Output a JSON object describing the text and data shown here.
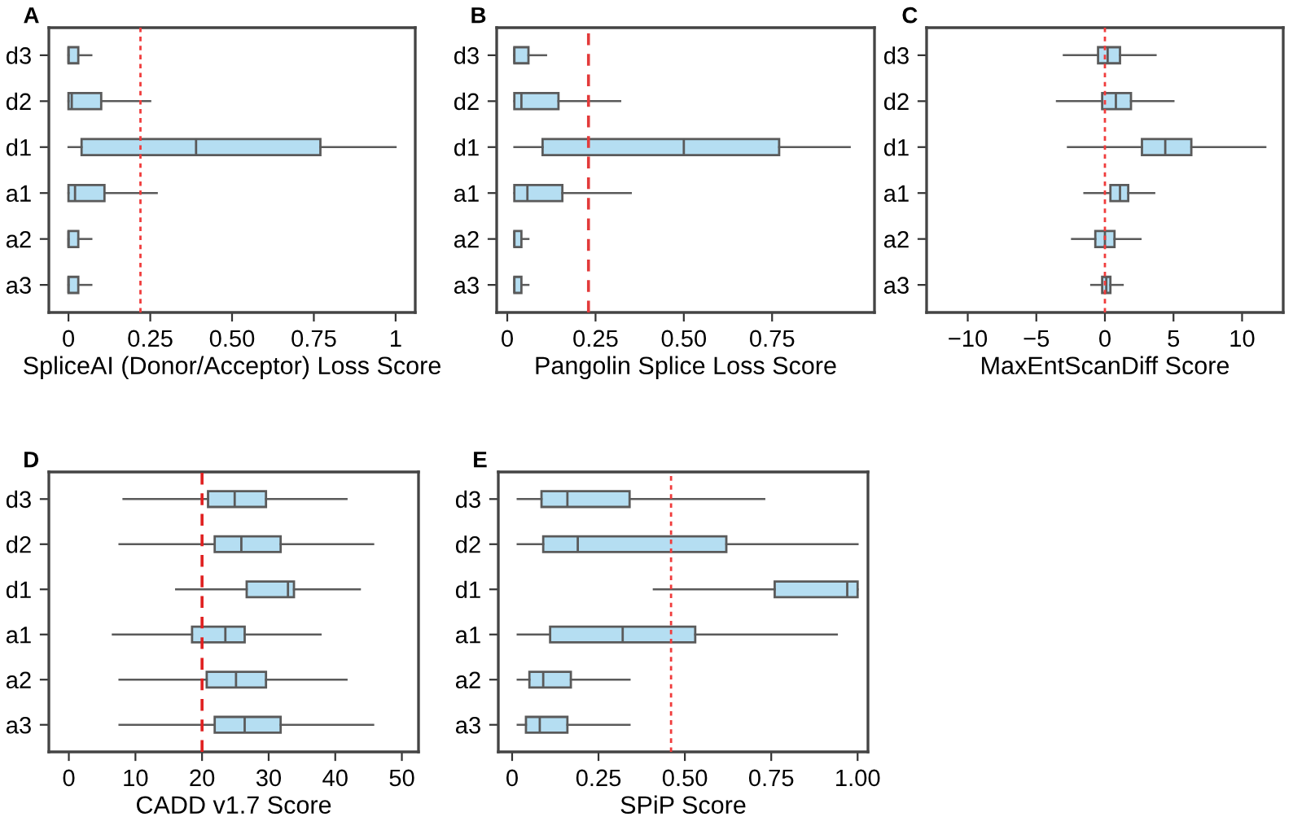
{
  "chart_data": [
    {
      "type": "box",
      "orientation": "horizontal",
      "title": "A",
      "xlabel": "SpliceAI (Donor/Acceptor) Loss Score",
      "categories": [
        "d3",
        "d2",
        "d1",
        "a1",
        "a2",
        "a3"
      ],
      "color": "#b5def2",
      "xlim": [
        -0.06,
        1.06
      ],
      "xticks": [
        0,
        0.25,
        {
          "value": 0.5,
          "label": "0.50"
        },
        0.75,
        1
      ],
      "grid": false,
      "boxes": [
        {
          "low": 0,
          "q1": 0,
          "median": 0,
          "q3": 0.03,
          "high": 0.07
        },
        {
          "low": 0,
          "q1": 0,
          "median": 0.01,
          "q3": 0.1,
          "high": 0.25
        },
        {
          "low": 0,
          "q1": 0.04,
          "median": 0.39,
          "q3": 0.77,
          "high": 1.0
        },
        {
          "low": 0,
          "q1": 0,
          "median": 0.02,
          "q3": 0.11,
          "high": 0.27
        },
        {
          "low": 0,
          "q1": 0,
          "median": 0,
          "q3": 0.03,
          "high": 0.07
        },
        {
          "low": 0,
          "q1": 0,
          "median": 0,
          "q3": 0.03,
          "high": 0.07
        }
      ],
      "ref_lines": [
        {
          "axis": "x",
          "value": 0.22,
          "color": "#f03c3c",
          "line_style": "dotted"
        }
      ]
    },
    {
      "type": "box",
      "orientation": "horizontal",
      "title": "B",
      "xlabel": "Pangolin Splice Loss Score",
      "categories": [
        "d3",
        "d2",
        "d1",
        "a1",
        "a2",
        "a3"
      ],
      "color": "#b5def2",
      "xlim": [
        -0.03,
        1.04
      ],
      "xticks": [
        0,
        0.25,
        {
          "value": 0.5,
          "label": "0.50"
        },
        0.75
      ],
      "grid": false,
      "boxes": [
        {
          "low": 0.02,
          "q1": 0.02,
          "median": 0.02,
          "q3": 0.06,
          "high": 0.11
        },
        {
          "low": 0.02,
          "q1": 0.02,
          "median": 0.04,
          "q3": 0.145,
          "high": 0.32
        },
        {
          "low": 0.02,
          "q1": 0.1,
          "median": 0.5,
          "q3": 0.77,
          "high": 0.97
        },
        {
          "low": 0.02,
          "q1": 0.02,
          "median": 0.057,
          "q3": 0.156,
          "high": 0.35
        },
        {
          "low": 0.02,
          "q1": 0.02,
          "median": 0.02,
          "q3": 0.04,
          "high": 0.06
        },
        {
          "low": 0.02,
          "q1": 0.02,
          "median": 0.02,
          "q3": 0.04,
          "high": 0.06
        }
      ],
      "ref_lines": [
        {
          "axis": "x",
          "value": 0.23,
          "color": "#e23b3b",
          "line_style": "dashed"
        }
      ]
    },
    {
      "type": "box",
      "orientation": "horizontal",
      "title": "C",
      "xlabel": "MaxEntScanDiff Score",
      "categories": [
        "d3",
        "d2",
        "d1",
        "a1",
        "a2",
        "a3"
      ],
      "color": "#b5def2",
      "xlim": [
        -13,
        13
      ],
      "xticks": [
        {
          "value": -10,
          "label": "−10"
        },
        {
          "value": -5,
          "label": "−5"
        },
        0,
        5,
        10
      ],
      "grid": false,
      "boxes": [
        {
          "low": -3.0,
          "q1": -0.5,
          "median": 0.2,
          "q3": 1.1,
          "high": 3.7
        },
        {
          "low": -3.5,
          "q1": -0.2,
          "median": 0.8,
          "q3": 1.9,
          "high": 5.0
        },
        {
          "low": -2.7,
          "q1": 2.7,
          "median": 4.4,
          "q3": 6.3,
          "high": 11.7
        },
        {
          "low": -1.5,
          "q1": 0.4,
          "median": 1.1,
          "q3": 1.7,
          "high": 3.6
        },
        {
          "low": -2.4,
          "q1": -0.7,
          "median": 0,
          "q3": 0.7,
          "high": 2.6
        },
        {
          "low": -1.0,
          "q1": -0.2,
          "median": 0.1,
          "q3": 0.4,
          "high": 1.3
        }
      ],
      "ref_lines": [
        {
          "axis": "x",
          "value": 0,
          "color": "#f03c3c",
          "line_style": "dotted"
        }
      ]
    },
    {
      "type": "box",
      "orientation": "horizontal",
      "title": "D",
      "xlabel": "CADD v1.7 Score",
      "categories": [
        "d3",
        "d2",
        "d1",
        "a1",
        "a2",
        "a3"
      ],
      "color": "#b5def2",
      "xlim": [
        -3,
        52.5
      ],
      "xticks": [
        0,
        10,
        20,
        30,
        40,
        50
      ],
      "grid": false,
      "boxes": [
        {
          "low": 8.2,
          "q1": 20.9,
          "median": 24.9,
          "q3": 29.6,
          "high": 41.7
        },
        {
          "low": 7.6,
          "q1": 21.9,
          "median": 25.9,
          "q3": 31.8,
          "high": 45.7
        },
        {
          "low": 16.1,
          "q1": 26.7,
          "median": 32.9,
          "q3": 33.8,
          "high": 43.7
        },
        {
          "low": 6.6,
          "q1": 18.5,
          "median": 23.5,
          "q3": 26.4,
          "high": 37.8
        },
        {
          "low": 7.6,
          "q1": 20.7,
          "median": 25.1,
          "q3": 29.6,
          "high": 41.7
        },
        {
          "low": 7.6,
          "q1": 21.9,
          "median": 26.4,
          "q3": 31.8,
          "high": 45.7
        }
      ],
      "ref_lines": [
        {
          "axis": "x",
          "value": 20,
          "color": "#e02020",
          "line_style": "dashed"
        }
      ]
    },
    {
      "type": "box",
      "orientation": "horizontal",
      "title": "E",
      "xlabel": "SPiP Score",
      "categories": [
        "d3",
        "d2",
        "d1",
        "a1",
        "a2",
        "a3"
      ],
      "color": "#b5def2",
      "xlim": [
        -0.04,
        1.03
      ],
      "xticks": [
        0,
        0.25,
        {
          "value": 0.5,
          "label": "0.50"
        },
        0.75,
        {
          "value": 1,
          "label": "1.00"
        }
      ],
      "grid": false,
      "boxes": [
        {
          "low": 0.016,
          "q1": 0.085,
          "median": 0.16,
          "q3": 0.34,
          "high": 0.73
        },
        {
          "low": 0.016,
          "q1": 0.09,
          "median": 0.19,
          "q3": 0.62,
          "high": 1.0
        },
        {
          "low": 0.41,
          "q1": 0.76,
          "median": 0.97,
          "q3": 1.0,
          "high": 1.0
        },
        {
          "low": 0.016,
          "q1": 0.11,
          "median": 0.32,
          "q3": 0.53,
          "high": 0.94
        },
        {
          "low": 0.016,
          "q1": 0.05,
          "median": 0.09,
          "q3": 0.17,
          "high": 0.34
        },
        {
          "low": 0.016,
          "q1": 0.04,
          "median": 0.08,
          "q3": 0.16,
          "high": 0.34
        }
      ],
      "ref_lines": [
        {
          "axis": "x",
          "value": 0.46,
          "color": "#f03c3c",
          "line_style": "dotted"
        }
      ]
    }
  ]
}
